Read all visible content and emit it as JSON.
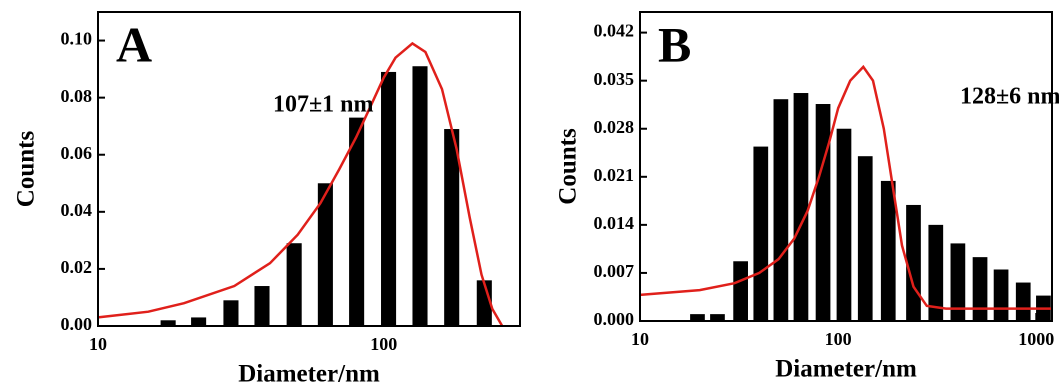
{
  "chart_data": [
    {
      "type": "bar",
      "panel": "A",
      "annotation": "107±1 nm",
      "xlabel": "Diameter/nm",
      "ylabel": "Counts",
      "xscale": "log",
      "xlim": [
        10,
        300
      ],
      "xticks": [
        10,
        100
      ],
      "ylim": [
        0,
        0.11
      ],
      "yticks": [
        {
          "value": 0,
          "label": "0.00"
        },
        0.02,
        0.04,
        0.06,
        0.08,
        {
          "value": 0.1,
          "label": "0.10"
        }
      ],
      "bars": {
        "color": "#000000",
        "x": [
          17.6,
          22.5,
          29.2,
          37.5,
          48.6,
          62.5,
          80.4,
          104,
          134,
          173,
          225
        ],
        "values": [
          0.002,
          0.003,
          0.009,
          0.014,
          0.029,
          0.05,
          0.073,
          0.089,
          0.091,
          0.069,
          0.016
        ]
      },
      "fit": {
        "color": "#e0201b",
        "x": [
          10,
          15,
          20,
          30,
          40,
          50,
          60,
          70,
          80,
          90,
          100,
          110,
          126,
          140,
          160,
          180,
          200,
          220,
          240,
          260
        ],
        "values": [
          0.003,
          0.005,
          0.008,
          0.014,
          0.022,
          0.032,
          0.043,
          0.055,
          0.066,
          0.077,
          0.087,
          0.094,
          0.099,
          0.096,
          0.083,
          0.062,
          0.038,
          0.018,
          0.006,
          0
        ]
      }
    },
    {
      "type": "bar",
      "panel": "B",
      "annotation": "128±6 nm",
      "xlabel": "Diameter/nm",
      "ylabel": "Counts",
      "xscale": "log",
      "xlim": [
        10,
        1200
      ],
      "xticks": [
        10,
        100,
        1000
      ],
      "ylim": [
        0,
        0.045
      ],
      "yticks": [
        {
          "value": 0,
          "label": "0.000"
        },
        0.007,
        0.014,
        0.021,
        0.028,
        0.035,
        0.042
      ],
      "bars": {
        "color": "#000000",
        "x": [
          19.5,
          24.6,
          32.2,
          40.7,
          51.4,
          64.9,
          83.9,
          107,
          137,
          179,
          240,
          311,
          402,
          520,
          664,
          859,
          1086
        ],
        "values": [
          0.001,
          0.001,
          0.0087,
          0.0254,
          0.0323,
          0.0332,
          0.0316,
          0.028,
          0.024,
          0.0204,
          0.0169,
          0.014,
          0.0113,
          0.0093,
          0.0075,
          0.0056,
          0.0037
        ]
      },
      "fit": {
        "color": "#e0201b",
        "x": [
          10,
          20,
          30,
          40,
          50,
          60,
          70,
          80,
          90,
          100,
          115,
          134,
          150,
          170,
          190,
          210,
          240,
          280,
          350,
          1200
        ],
        "values": [
          0.0038,
          0.0045,
          0.0055,
          0.007,
          0.009,
          0.012,
          0.016,
          0.021,
          0.026,
          0.031,
          0.035,
          0.037,
          0.035,
          0.028,
          0.019,
          0.011,
          0.005,
          0.0022,
          0.0018,
          0.0018
        ]
      }
    }
  ]
}
